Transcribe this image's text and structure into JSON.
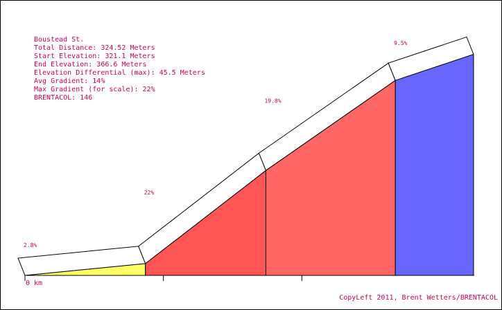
{
  "chart_data": {
    "type": "elevation-profile",
    "info": [
      "Boustead St.",
      "Total Distance: 324.52 Meters",
      "Start Elevation: 321.1 Meters",
      "End Elevation: 366.6 Meters",
      "Elevation Differential (max): 45.5 Meters",
      "Avg Gradient: 14%",
      "Max Gradient (for scale): 22%",
      "BRENTACOL: 146"
    ],
    "distances": [
      87,
      87,
      93.5,
      56.5
    ],
    "values": [
      2.8,
      22,
      19.8,
      9.5
    ],
    "value_labels": [
      "2.8%",
      "22%",
      "19.8%",
      "9.5%"
    ],
    "colors": [
      "#ffff66",
      "#ff5555",
      "#ff6666",
      "#6666ff"
    ],
    "xlim": [
      0,
      324.52
    ],
    "xticks": [
      {
        "value": 0,
        "label": "0 km"
      }
    ],
    "minor_xticks": [
      100,
      200
    ],
    "credit": "CopyLeft 2011, Brent Wetters/BRENTACOL"
  }
}
